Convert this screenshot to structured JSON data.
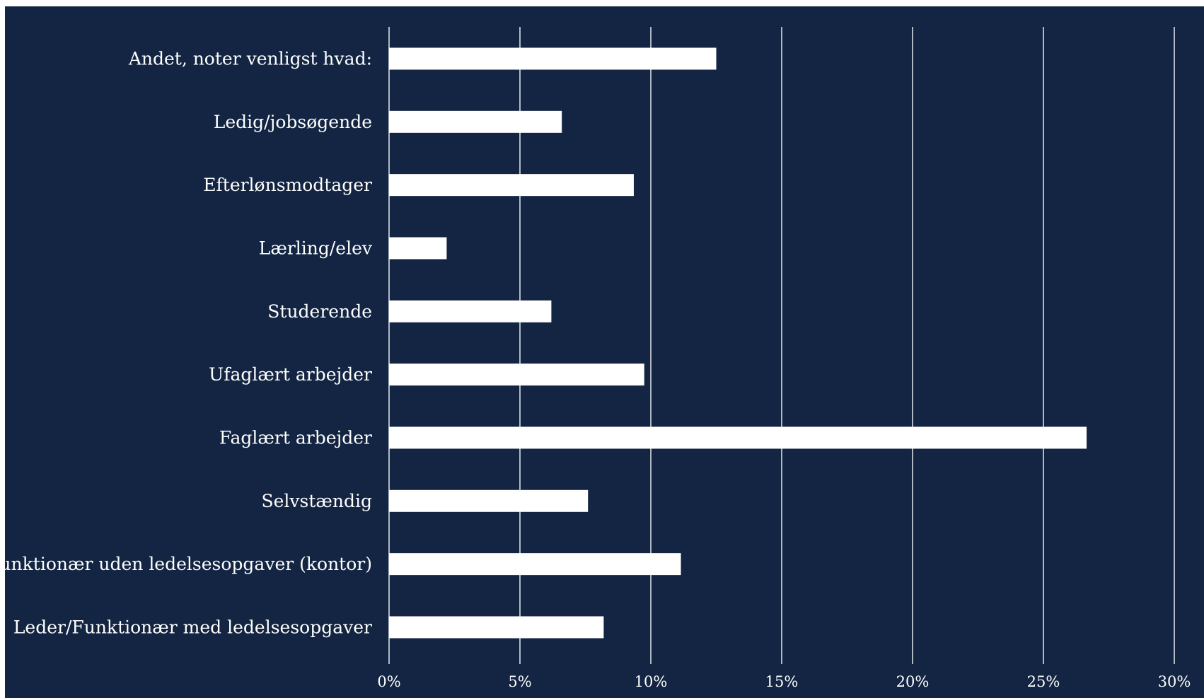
{
  "chart_data": {
    "type": "bar",
    "orientation": "horizontal",
    "categories": [
      "Andet, noter venligst hvad:",
      "Ledig/jobsøgende",
      "Efterlønsmodtager",
      "Lærling/elev",
      "Studerende",
      "Ufaglært arbejder",
      "Faglært arbejder",
      "Selvstændig",
      "Funktionær uden ledelsesopgaver (kontor)",
      "Leder/Funktionær med ledelsesopgaver"
    ],
    "values": [
      12.5,
      6.6,
      9.35,
      2.2,
      6.2,
      9.75,
      26.65,
      7.6,
      11.15,
      8.2
    ],
    "xlim": [
      0,
      30
    ],
    "ticks": [
      0,
      5,
      10,
      15,
      20,
      25,
      30
    ],
    "tick_labels": [
      "0%",
      "5%",
      "10%",
      "15%",
      "20%",
      "25%",
      "30%"
    ],
    "title": "",
    "xlabel": "",
    "ylabel": "",
    "grid": "vertical",
    "legend": "none",
    "colors": {
      "background": "#132542",
      "bar": "#ffffff",
      "grid": "#d9dde3",
      "text": "#ffffff"
    }
  }
}
